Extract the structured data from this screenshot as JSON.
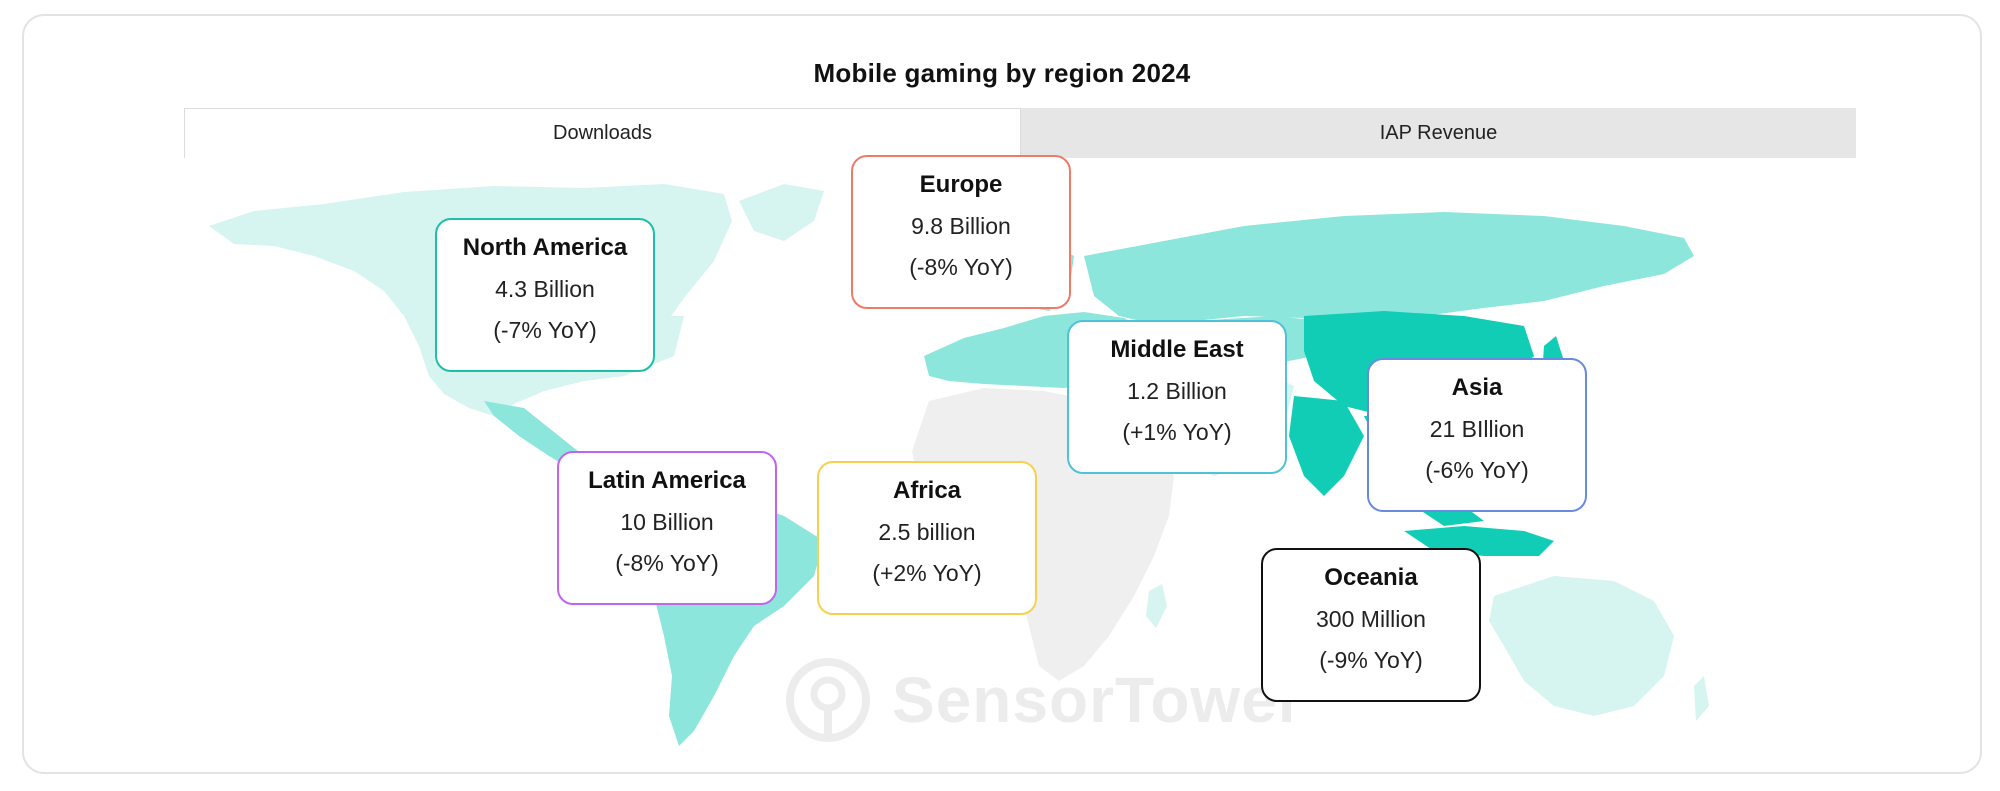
{
  "title": "Mobile gaming by region 2024",
  "tabs": [
    {
      "label": "Downloads",
      "active": true
    },
    {
      "label": "IAP Revenue",
      "active": false
    }
  ],
  "watermark": {
    "text": "SensorTower"
  },
  "colors": {
    "high": "#11cdb6",
    "mid": "#8ce6dc",
    "low": "#d6f4f0",
    "none": "#efefef"
  },
  "regions": [
    {
      "id": "north-america",
      "name": "North America",
      "value": "4.3 Billion",
      "change": "(-7% YoY)",
      "border": "#1fbea9"
    },
    {
      "id": "europe",
      "name": "Europe",
      "value": "9.8 Billion",
      "change": "(-8% YoY)",
      "border": "#ef7a66"
    },
    {
      "id": "middle-east",
      "name": "Middle East",
      "value": "1.2 Billion",
      "change": "(+1% YoY)",
      "border": "#4fc1d9"
    },
    {
      "id": "asia",
      "name": "Asia",
      "value": "21 BIllion",
      "change": "(-6% YoY)",
      "border": "#6a8ae0"
    },
    {
      "id": "latin-america",
      "name": "Latin America",
      "value": "10 Billion",
      "change": "(-8% YoY)",
      "border": "#c065ee"
    },
    {
      "id": "africa",
      "name": "Africa",
      "value": "2.5 billion",
      "change": "(+2% YoY)",
      "border": "#f5d14f"
    },
    {
      "id": "oceania",
      "name": "Oceania",
      "value": "300 Million",
      "change": "(-9% YoY)",
      "border": "#111111"
    }
  ]
}
